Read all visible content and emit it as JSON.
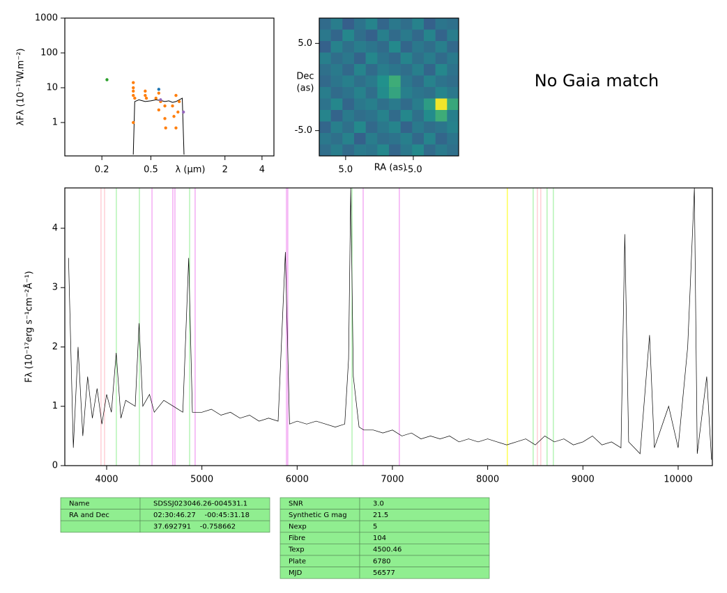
{
  "chart_data": [
    {
      "type": "scatter",
      "xlog": true,
      "ylog": true,
      "xlabel": "λ (μm)",
      "ylabel": "λFλ (10⁻¹⁷W.m⁻²)",
      "xlim": [
        0.1,
        5
      ],
      "ylim": [
        0.11,
        1000
      ],
      "xticks": [
        0.2,
        0.5,
        2,
        4
      ],
      "yticks": [
        1,
        10,
        100,
        1000
      ],
      "series": [
        {
          "mode": "line",
          "color": "#000000",
          "x": [
            0.36,
            0.37,
            0.4,
            0.45,
            0.5,
            0.55,
            0.6,
            0.65,
            0.7,
            0.75,
            0.8,
            0.85,
            0.9,
            0.93
          ],
          "values": [
            0.12,
            4,
            4.5,
            4,
            4.2,
            4.5,
            4.3,
            4,
            4.2,
            3.8,
            4,
            4.5,
            5,
            0.12
          ]
        },
        {
          "mode": "points",
          "color": "#ff7f0e",
          "x": [
            0.36,
            0.36,
            0.36,
            0.36,
            0.36,
            0.37,
            0.45,
            0.45,
            0.46,
            0.55,
            0.58,
            0.58,
            0.6,
            0.65,
            0.66,
            0.65,
            0.75,
            0.77,
            0.8,
            0.8,
            0.83,
            0.85
          ],
          "values": [
            14,
            10,
            8,
            6,
            1,
            5,
            6,
            8,
            5,
            5,
            7,
            2.3,
            4,
            3,
            0.7,
            1.3,
            3,
            1.5,
            6,
            0.7,
            2,
            4
          ]
        },
        {
          "mode": "points",
          "color": "#2ca02c",
          "x": [
            0.22
          ],
          "values": [
            17
          ]
        },
        {
          "mode": "points",
          "color": "#9467bd",
          "x": [
            0.92,
            0.6
          ],
          "values": [
            2,
            4.5
          ]
        },
        {
          "mode": "points",
          "color": "#1f77b4",
          "x": [
            0.58
          ],
          "values": [
            9
          ]
        }
      ]
    },
    {
      "type": "image",
      "xlabel": "RA (as)",
      "ylabel_lines": [
        "Dec",
        "(as)"
      ],
      "xlim": [
        8.9,
        -11.7
      ],
      "ylim": [
        -7.9,
        7.9
      ],
      "xticks": [
        {
          "value": 5,
          "label": "5.0"
        },
        {
          "value": -5,
          "label": "-5.0"
        }
      ],
      "yticks": [
        {
          "value": 5,
          "label": "5.0"
        },
        {
          "value": -5,
          "label": "-5.0"
        }
      ],
      "zlim": [
        0,
        1
      ],
      "colormap": [
        "#440154",
        "#3b528b",
        "#21918c",
        "#5ec962",
        "#fde725"
      ],
      "z": [
        [
          0.35,
          0.42,
          0.3,
          0.38,
          0.45,
          0.33,
          0.4,
          0.36,
          0.44,
          0.31,
          0.39,
          0.37
        ],
        [
          0.4,
          0.33,
          0.46,
          0.36,
          0.31,
          0.43,
          0.35,
          0.41,
          0.34,
          0.45,
          0.32,
          0.42
        ],
        [
          0.31,
          0.44,
          0.37,
          0.42,
          0.39,
          0.35,
          0.47,
          0.33,
          0.4,
          0.36,
          0.43,
          0.34
        ],
        [
          0.43,
          0.36,
          0.4,
          0.32,
          0.46,
          0.38,
          0.34,
          0.45,
          0.37,
          0.42,
          0.35,
          0.41
        ],
        [
          0.37,
          0.41,
          0.34,
          0.45,
          0.35,
          0.42,
          0.39,
          0.36,
          0.43,
          0.33,
          0.46,
          0.38
        ],
        [
          0.34,
          0.39,
          0.43,
          0.37,
          0.41,
          0.5,
          0.62,
          0.4,
          0.35,
          0.44,
          0.38,
          0.36
        ],
        [
          0.42,
          0.35,
          0.38,
          0.44,
          0.36,
          0.48,
          0.58,
          0.43,
          0.39,
          0.37,
          0.45,
          0.4
        ],
        [
          0.38,
          0.46,
          0.33,
          0.4,
          0.43,
          0.37,
          0.41,
          0.35,
          0.42,
          0.55,
          0.98,
          0.6
        ],
        [
          0.45,
          0.32,
          0.41,
          0.36,
          0.38,
          0.44,
          0.35,
          0.46,
          0.37,
          0.48,
          0.62,
          0.43
        ],
        [
          0.33,
          0.43,
          0.37,
          0.47,
          0.34,
          0.4,
          0.45,
          0.32,
          0.41,
          0.36,
          0.39,
          0.44
        ],
        [
          0.4,
          0.37,
          0.44,
          0.31,
          0.42,
          0.36,
          0.38,
          0.43,
          0.34,
          0.45,
          0.33,
          0.39
        ],
        [
          0.36,
          0.42,
          0.35,
          0.41,
          0.39,
          0.46,
          0.33,
          0.4,
          0.47,
          0.35,
          0.41,
          0.37
        ]
      ]
    },
    {
      "type": "line",
      "ylabel": "Fλ (10⁻¹⁷erg s⁻¹cm⁻²Å⁻¹)",
      "xlim": [
        3561,
        10359
      ],
      "ylim": [
        0,
        4.68
      ],
      "xticks": [
        4000,
        5000,
        6000,
        7000,
        8000,
        9000,
        10000
      ],
      "yticks": [
        0,
        1,
        2,
        3,
        4
      ],
      "color": "#000000",
      "x": [
        3600,
        3650,
        3700,
        3750,
        3800,
        3850,
        3900,
        3950,
        4000,
        4050,
        4100,
        4150,
        4200,
        4300,
        4340,
        4380,
        4450,
        4500,
        4600,
        4700,
        4800,
        4861,
        4900,
        5000,
        5100,
        5200,
        5300,
        5400,
        5500,
        5600,
        5700,
        5800,
        5876,
        5920,
        6000,
        6100,
        6200,
        6300,
        6400,
        6500,
        6540,
        6563,
        6590,
        6650,
        6700,
        6800,
        6900,
        7000,
        7100,
        7200,
        7300,
        7400,
        7500,
        7600,
        7700,
        7800,
        7900,
        8000,
        8100,
        8200,
        8300,
        8400,
        8500,
        8600,
        8700,
        8800,
        8900,
        9000,
        9100,
        9200,
        9300,
        9400,
        9440,
        9480,
        9600,
        9700,
        9750,
        9900,
        10000,
        10100,
        10170,
        10200,
        10300,
        10350
      ],
      "values": [
        3.5,
        0.3,
        2.0,
        0.5,
        1.5,
        0.8,
        1.3,
        0.7,
        1.2,
        0.9,
        1.9,
        0.8,
        1.1,
        1.0,
        2.4,
        1.0,
        1.2,
        0.9,
        1.1,
        1.0,
        0.9,
        3.5,
        0.9,
        0.9,
        0.95,
        0.85,
        0.9,
        0.8,
        0.85,
        0.75,
        0.8,
        0.75,
        3.6,
        0.7,
        0.75,
        0.7,
        0.75,
        0.7,
        0.65,
        0.7,
        1.8,
        4.68,
        1.5,
        0.65,
        0.6,
        0.6,
        0.55,
        0.6,
        0.5,
        0.55,
        0.45,
        0.5,
        0.45,
        0.5,
        0.4,
        0.45,
        0.4,
        0.45,
        0.4,
        0.35,
        0.4,
        0.45,
        0.35,
        0.5,
        0.4,
        0.45,
        0.35,
        0.4,
        0.5,
        0.35,
        0.4,
        0.3,
        3.9,
        0.4,
        0.2,
        2.2,
        0.3,
        1.0,
        0.3,
        2.0,
        4.68,
        0.2,
        1.5,
        0.1
      ],
      "vlines": [
        {
          "x": 3941,
          "color": "#ffb6c1"
        },
        {
          "x": 3978,
          "color": "#ffb6c1"
        },
        {
          "x": 4102,
          "color": "#90ee90"
        },
        {
          "x": 4344,
          "color": "#90ee90"
        },
        {
          "x": 4476,
          "color": "#ee82ee"
        },
        {
          "x": 4695,
          "color": "#ee82ee"
        },
        {
          "x": 4717,
          "color": "#ee82ee"
        },
        {
          "x": 4871,
          "color": "#90ee90"
        },
        {
          "x": 4929,
          "color": "#ee82ee"
        },
        {
          "x": 5888,
          "color": "#ee82ee"
        },
        {
          "x": 5902,
          "color": "#ee82ee"
        },
        {
          "x": 6576,
          "color": "#90ee90"
        },
        {
          "x": 6693,
          "color": "#ee82ee"
        },
        {
          "x": 7073,
          "color": "#ee82ee"
        },
        {
          "x": 8207,
          "color": "#ffff00"
        },
        {
          "x": 8478,
          "color": "#90ee90"
        },
        {
          "x": 8522,
          "color": "#ffb6c1"
        },
        {
          "x": 8558,
          "color": "#ffb6c1"
        },
        {
          "x": 8624,
          "color": "#90ee90"
        },
        {
          "x": 8690,
          "color": "#90ee90"
        }
      ]
    }
  ],
  "gaia_note": "No Gaia match",
  "tables": [
    {
      "rows": [
        {
          "label": "Name",
          "value": "SDSSJ023046.26-004531.1"
        },
        {
          "label": "RA and Dec",
          "value": "02:30:46.27    -00:45:31.18"
        },
        {
          "value": "37.692791    -0.758662"
        }
      ]
    },
    {
      "rows": [
        {
          "label": "SNR",
          "value": "3.0"
        },
        {
          "label": "Synthetic G mag",
          "value": "21.5"
        },
        {
          "label": "Nexp",
          "value": "5"
        },
        {
          "label": "Fibre",
          "value": "104"
        },
        {
          "label": "Texp",
          "value": "4500.46"
        },
        {
          "label": "Plate",
          "value": "6780"
        },
        {
          "label": "MJD",
          "value": "56577"
        }
      ]
    }
  ]
}
